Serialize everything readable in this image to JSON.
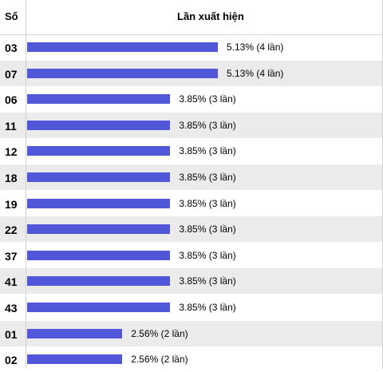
{
  "header": {
    "number_col": "Số",
    "value_col": "Lần xuất hiện"
  },
  "colors": {
    "bar": "#5057d8",
    "row_alt": "#ebebeb"
  },
  "chart_data": {
    "type": "bar",
    "orientation": "horizontal",
    "value_unit": "%",
    "categories": [
      "03",
      "07",
      "06",
      "11",
      "12",
      "18",
      "19",
      "22",
      "37",
      "41",
      "43",
      "01",
      "02"
    ],
    "values": [
      5.13,
      5.13,
      3.85,
      3.85,
      3.85,
      3.85,
      3.85,
      3.85,
      3.85,
      3.85,
      3.85,
      2.56,
      2.56
    ],
    "labels": [
      "5.13% (4 lần)",
      "5.13% (4 lần)",
      "3.85% (3 lần)",
      "3.85% (3 lần)",
      "3.85% (3 lần)",
      "3.85% (3 lần)",
      "3.85% (3 lần)",
      "3.85% (3 lần)",
      "3.85% (3 lần)",
      "3.85% (3 lần)",
      "3.85% (3 lần)",
      "2.56% (2 lần)",
      "2.56% (2 lần)"
    ],
    "counts": [
      4,
      4,
      3,
      3,
      3,
      3,
      3,
      3,
      3,
      3,
      3,
      2,
      2
    ]
  }
}
